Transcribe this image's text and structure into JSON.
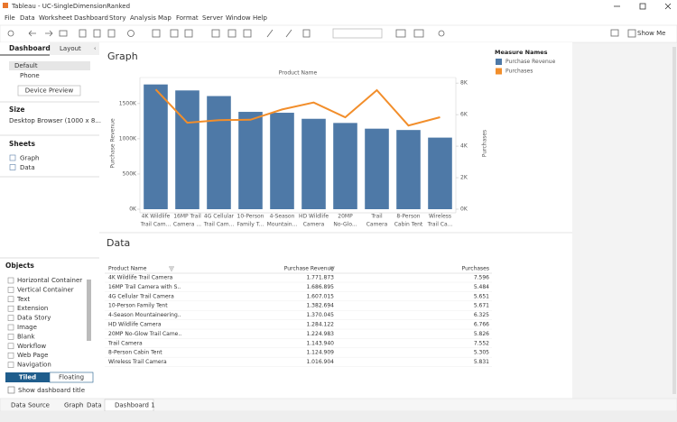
{
  "window": {
    "title": "Tableau - UC-SingleDimensionRanked"
  },
  "menu": [
    "File",
    "Data",
    "Worksheet",
    "Dashboard",
    "Story",
    "Analysis",
    "Map",
    "Format",
    "Server",
    "Window",
    "Help"
  ],
  "toolbar": {
    "show_me": "Show Me"
  },
  "left_panel": {
    "tabs": [
      "Dashboard",
      "Layout"
    ],
    "devices": [
      "Default",
      "Phone"
    ],
    "device_preview": "Device Preview",
    "size_heading": "Size",
    "size_value": "Desktop Browser (1000 x 8...",
    "sheets_heading": "Sheets",
    "sheets": [
      "Graph",
      "Data"
    ],
    "objects_heading": "Objects",
    "objects": [
      "Horizontal Container",
      "Vertical Container",
      "Text",
      "Extension",
      "Data Story",
      "Image",
      "Blank",
      "Workflow",
      "Web Page",
      "Navigation"
    ],
    "layout_buttons": [
      "Tiled",
      "Floating"
    ],
    "show_title": "Show dashboard title"
  },
  "graph": {
    "type": "bar",
    "title": "Graph",
    "x_header": "Product Name",
    "categories": [
      [
        "4K Wildlife",
        "Trail Cam..."
      ],
      [
        "16MP Trail",
        "Camera ..."
      ],
      [
        "4G Cellular",
        "Trail Cam..."
      ],
      [
        "10-Person",
        "Family T..."
      ],
      [
        "4-Season",
        "Mountain..."
      ],
      [
        "HD Wildlife",
        "Camera"
      ],
      [
        "20MP",
        "No-Glo..."
      ],
      [
        "Trail",
        "Camera"
      ],
      [
        "8-Person",
        "Cabin Tent"
      ],
      [
        "Wireless",
        "Trail Ca..."
      ]
    ],
    "y_label": "Purchase Revenue",
    "y2_label": "Purchases",
    "legend_title": "Measure Names",
    "series": [
      {
        "name": "Purchase Revenue",
        "color": "#4e79a7",
        "type": "bar",
        "values": [
          1771873,
          1686895,
          1607015,
          1382694,
          1370045,
          1284122,
          1224983,
          1143940,
          1124909,
          1016904
        ]
      },
      {
        "name": "Purchases",
        "color": "#f28e2b",
        "type": "line",
        "axis": "y2",
        "values": [
          7596,
          5484,
          5651,
          5671,
          6325,
          6766,
          5826,
          7552,
          5305,
          5831
        ]
      }
    ],
    "ylim": [
      0,
      1870000
    ],
    "yticks": [
      {
        "value": 0,
        "label": "0K"
      },
      {
        "value": 500000,
        "label": "500K"
      },
      {
        "value": 1000000,
        "label": "1000K"
      },
      {
        "value": 1500000,
        "label": "1500K"
      }
    ],
    "y2lim": [
      0,
      8350
    ],
    "y2ticks": [
      {
        "value": 0,
        "label": "0K"
      },
      {
        "value": 2000,
        "label": "2K"
      },
      {
        "value": 4000,
        "label": "4K"
      },
      {
        "value": 6000,
        "label": "6K"
      },
      {
        "value": 8000,
        "label": "8K"
      }
    ]
  },
  "data_table": {
    "title": "Data",
    "columns": [
      "Product Name",
      "Purchase Revenue",
      "Purchases"
    ],
    "rows": [
      [
        "4K Wildlife Trail Camera",
        "1.771.873",
        "7.596"
      ],
      [
        "16MP Trail Camera with S..",
        "1.686.895",
        "5.484"
      ],
      [
        "4G Cellular Trail Camera",
        "1.607.015",
        "5.651"
      ],
      [
        "10-Person Family Tent",
        "1.382.694",
        "5.671"
      ],
      [
        "4-Season Mountaineering..",
        "1.370.045",
        "6.325"
      ],
      [
        "HD Wildlife Camera",
        "1.284.122",
        "6.766"
      ],
      [
        "20MP No-Glow Trail Came..",
        "1.224.983",
        "5.826"
      ],
      [
        "Trail Camera",
        "1.143.940",
        "7.552"
      ],
      [
        "8-Person Cabin Tent",
        "1.124.909",
        "5.305"
      ],
      [
        "Wireless Trail Camera",
        "1.016.904",
        "5.831"
      ]
    ]
  },
  "bottom_tabs": [
    "Data Source",
    "Graph",
    "Data",
    "Dashboard 1"
  ]
}
